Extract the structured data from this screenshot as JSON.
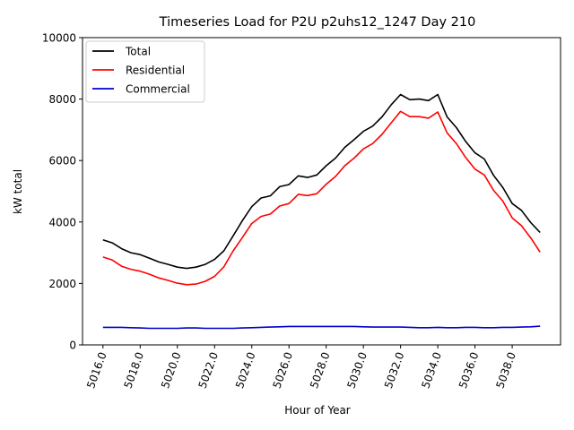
{
  "chart_data": {
    "type": "line",
    "title": "Timeseries Load for P2U p2uhs12_1247  Day 210",
    "xlabel": "Hour of Year",
    "ylabel": "kW total",
    "xlim": [
      5014.9,
      5040.6
    ],
    "ylim": [
      0,
      10000
    ],
    "x_ticks": [
      5016,
      5018,
      5020,
      5022,
      5024,
      5026,
      5028,
      5030,
      5032,
      5034,
      5036,
      5038
    ],
    "x_tick_labels": [
      "5016.0",
      "5018.0",
      "5020.0",
      "5022.0",
      "5024.0",
      "5026.0",
      "5028.0",
      "5030.0",
      "5032.0",
      "5034.0",
      "5036.0",
      "5038.0"
    ],
    "y_ticks": [
      0,
      2000,
      4000,
      6000,
      8000,
      10000
    ],
    "y_tick_labels": [
      "0",
      "2000",
      "4000",
      "6000",
      "8000",
      "10000"
    ],
    "grid": false,
    "legend_position": "top-left",
    "x": [
      5016.0,
      5016.5,
      5017.0,
      5017.5,
      5018.0,
      5018.5,
      5019.0,
      5019.5,
      5020.0,
      5020.5,
      5021.0,
      5021.5,
      5022.0,
      5022.5,
      5023.0,
      5023.5,
      5024.0,
      5024.5,
      5025.0,
      5025.5,
      5026.0,
      5026.5,
      5027.0,
      5027.5,
      5028.0,
      5028.5,
      5029.0,
      5029.5,
      5030.0,
      5030.5,
      5031.0,
      5031.5,
      5032.0,
      5032.5,
      5033.0,
      5033.5,
      5034.0,
      5034.5,
      5035.0,
      5035.5,
      5036.0,
      5036.5,
      5037.0,
      5037.5,
      5038.0,
      5038.5,
      5039.0,
      5039.5
    ],
    "series": [
      {
        "name": "Total",
        "color": "#000000",
        "values": [
          3420,
          3320,
          3130,
          3000,
          2940,
          2820,
          2700,
          2620,
          2530,
          2490,
          2530,
          2620,
          2780,
          3060,
          3550,
          4050,
          4500,
          4780,
          4850,
          5150,
          5220,
          5500,
          5450,
          5530,
          5830,
          6080,
          6430,
          6680,
          6950,
          7120,
          7420,
          7820,
          8150,
          7980,
          8000,
          7950,
          8150,
          7420,
          7070,
          6620,
          6250,
          6050,
          5520,
          5120,
          4600,
          4380,
          3980,
          3660
        ]
      },
      {
        "name": "Residential",
        "color": "#ff0000",
        "values": [
          2860,
          2760,
          2560,
          2460,
          2400,
          2300,
          2180,
          2100,
          2010,
          1960,
          1980,
          2070,
          2230,
          2540,
          3060,
          3500,
          3950,
          4180,
          4260,
          4520,
          4600,
          4900,
          4860,
          4920,
          5230,
          5480,
          5830,
          6080,
          6380,
          6550,
          6850,
          7230,
          7600,
          7430,
          7430,
          7380,
          7580,
          6900,
          6550,
          6100,
          5720,
          5530,
          5030,
          4680,
          4130,
          3880,
          3480,
          3020
        ]
      },
      {
        "name": "Commercial",
        "color": "#0000cc",
        "values": [
          570,
          570,
          570,
          560,
          550,
          540,
          540,
          540,
          540,
          550,
          550,
          540,
          540,
          540,
          540,
          550,
          560,
          570,
          580,
          590,
          600,
          600,
          600,
          600,
          600,
          600,
          600,
          600,
          590,
          580,
          580,
          580,
          580,
          570,
          560,
          560,
          570,
          560,
          560,
          570,
          570,
          560,
          560,
          570,
          570,
          580,
          590,
          610
        ]
      }
    ]
  }
}
